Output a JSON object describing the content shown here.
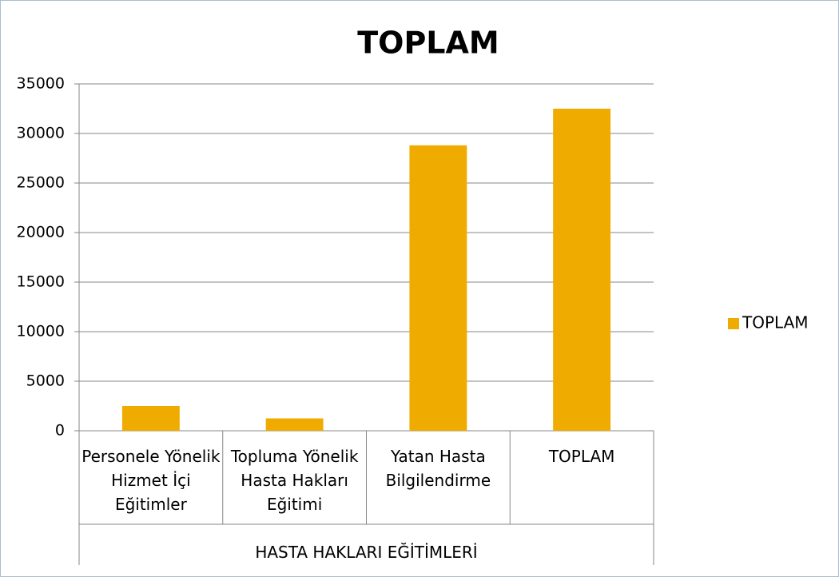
{
  "chart_data": {
    "type": "bar",
    "title": "TOPLAM",
    "categories": [
      "Personele Yönelik Hizmet İçi Eğitimler",
      "Topluma Yönelik Hasta Hakları Eğitimi",
      "Yatan Hasta Bilgilendirme",
      "TOPLAM"
    ],
    "x_group_label": "HASTA HAKLARI EĞİTİMLERİ",
    "series": [
      {
        "name": "TOPLAM",
        "color": "#f0ab00",
        "values": [
          2500,
          1250,
          28800,
          32500
        ]
      }
    ],
    "ylim": [
      0,
      35000
    ],
    "yticks": [
      0,
      5000,
      10000,
      15000,
      20000,
      25000,
      30000,
      35000
    ],
    "grid": true,
    "legend": "right"
  }
}
